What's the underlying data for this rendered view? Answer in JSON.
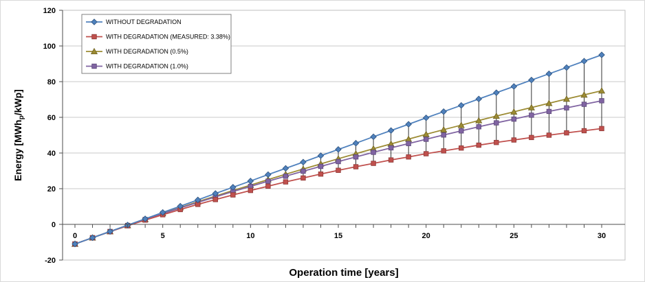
{
  "chart_data": {
    "type": "line",
    "title": "",
    "xlabel": "Operation time [years]",
    "ylabel": {
      "prefix": "Energy [MWh",
      "sub": "p",
      "suffix": "/kWp]"
    },
    "xlim": [
      0,
      30
    ],
    "ylim": [
      -20,
      120
    ],
    "x_ticks": [
      0,
      5,
      10,
      15,
      20,
      25,
      30
    ],
    "y_ticks": [
      -20,
      0,
      20,
      40,
      60,
      80,
      100,
      120
    ],
    "grid": "horizontal",
    "legend_position": "top-left-inside",
    "x": [
      0,
      1,
      2,
      3,
      4,
      5,
      6,
      7,
      8,
      9,
      10,
      11,
      12,
      13,
      14,
      15,
      16,
      17,
      18,
      19,
      20,
      21,
      22,
      23,
      24,
      25,
      26,
      27,
      28,
      29,
      30
    ],
    "series": [
      {
        "name": "WITHOUT DEGRADATION",
        "color": "#4F81BD",
        "edge": "#2E527C",
        "marker": "diamond",
        "values": [
          -11.0,
          -7.5,
          -4.0,
          -0.4,
          3.1,
          6.7,
          10.2,
          13.7,
          17.3,
          20.8,
          24.3,
          27.9,
          31.4,
          34.9,
          38.5,
          42.0,
          45.5,
          49.1,
          52.6,
          56.1,
          59.7,
          63.2,
          66.7,
          70.3,
          73.8,
          77.3,
          80.9,
          84.4,
          87.9,
          91.5,
          95.0
        ]
      },
      {
        "name": "WITH DEGRADATION (MEASURED: 3.38%)",
        "color": "#C0504D",
        "edge": "#8C3836",
        "marker": "square",
        "values": [
          -11.0,
          -7.5,
          -4.1,
          -0.8,
          2.4,
          5.4,
          8.3,
          11.2,
          13.9,
          16.5,
          19.0,
          21.4,
          23.8,
          26.0,
          28.2,
          30.3,
          32.3,
          34.2,
          36.1,
          37.8,
          39.6,
          41.2,
          42.8,
          44.4,
          45.9,
          47.3,
          48.7,
          50.0,
          51.3,
          52.5,
          53.7
        ]
      },
      {
        "name": "WITH DEGRADATION (0.5%)",
        "color": "#9C8B33",
        "edge": "#6E6222",
        "marker": "triangle",
        "values": [
          -11.0,
          -7.5,
          -4.0,
          -0.6,
          2.8,
          6.2,
          9.4,
          12.7,
          15.8,
          19.0,
          22.0,
          25.1,
          28.1,
          31.0,
          33.9,
          36.8,
          39.6,
          42.4,
          45.1,
          47.8,
          50.5,
          53.1,
          55.6,
          58.2,
          60.7,
          63.1,
          65.5,
          67.9,
          70.3,
          72.6,
          74.9
        ]
      },
      {
        "name": "WITH DEGRADATION (1.0%)",
        "color": "#8064A2",
        "edge": "#5B4778",
        "marker": "square",
        "values": [
          -11.0,
          -7.5,
          -4.0,
          -0.6,
          2.7,
          6.0,
          9.2,
          12.3,
          15.4,
          18.4,
          21.3,
          24.2,
          27.0,
          29.8,
          32.5,
          35.2,
          37.8,
          40.4,
          42.9,
          45.3,
          47.7,
          50.1,
          52.4,
          54.7,
          56.9,
          59.0,
          61.2,
          63.3,
          65.3,
          67.3,
          69.3
        ]
      }
    ],
    "droplines": {
      "from_series": 0,
      "to_series": 1,
      "year_start": 13,
      "year_end": 30,
      "color": "#1A1A1A"
    },
    "colors": {
      "gridline": "#C9C9C9",
      "plot_border": "#BFBFBF",
      "axis": "#4D4D4D"
    }
  }
}
